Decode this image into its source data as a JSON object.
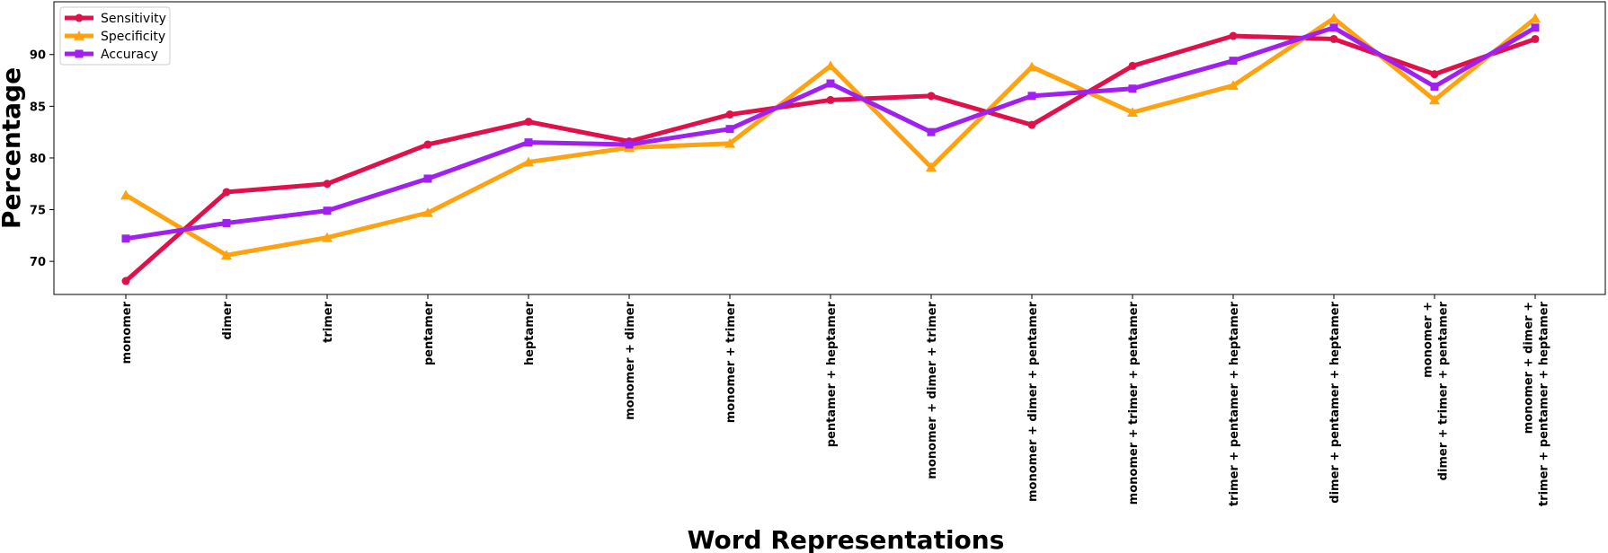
{
  "chart_data": {
    "type": "line",
    "title": "",
    "xlabel": "Word Representations",
    "ylabel": "Percentage",
    "ylim": [
      66.8,
      95.1
    ],
    "yticks": [
      70,
      75,
      80,
      85,
      90
    ],
    "grid": false,
    "legend_position": "top-left",
    "categories": [
      [
        "monomer"
      ],
      [
        "dimer"
      ],
      [
        "trimer"
      ],
      [
        "pentamer"
      ],
      [
        "heptamer"
      ],
      [
        "monomer + dimer"
      ],
      [
        "monomer + trimer"
      ],
      [
        "pentamer + heptamer"
      ],
      [
        "monomer + dimer + trimer"
      ],
      [
        "monomer + dimer + pentamer"
      ],
      [
        "monomer + trimer + pentamer"
      ],
      [
        "trimer + pentamer + heptamer"
      ],
      [
        "dimer + pentamer + heptamer"
      ],
      [
        "monomer +",
        "dimer + trimer + pentamer"
      ],
      [
        "monomer + dimer +",
        "trimer + pentamer + heptamer"
      ]
    ],
    "series": [
      {
        "name": "Sensitivity",
        "color": "#e0104a",
        "marker": "circle",
        "values": [
          68.1,
          76.7,
          77.5,
          81.3,
          83.5,
          81.6,
          84.2,
          85.6,
          86.0,
          83.2,
          88.9,
          91.8,
          91.5,
          88.1,
          91.5
        ]
      },
      {
        "name": "Specificity",
        "color": "#ffa210",
        "marker": "triangle",
        "values": [
          76.4,
          70.6,
          72.3,
          74.7,
          79.6,
          81.0,
          81.4,
          88.9,
          79.1,
          88.8,
          84.4,
          87.0,
          93.5,
          85.6,
          93.5
        ]
      },
      {
        "name": "Accuracy",
        "color": "#a020f0",
        "marker": "square",
        "values": [
          72.2,
          73.7,
          74.9,
          78.0,
          81.5,
          81.3,
          82.8,
          87.2,
          82.5,
          86.0,
          86.7,
          89.4,
          92.6,
          86.9,
          92.6
        ]
      }
    ]
  }
}
